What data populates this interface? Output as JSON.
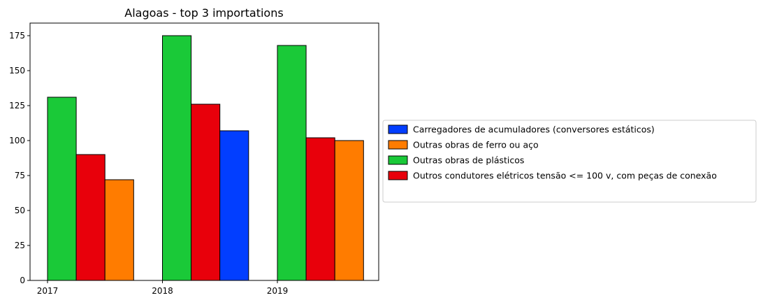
{
  "chart_data": {
    "type": "bar",
    "title": "Alagoas - top 3 importations",
    "xlabel": "",
    "ylabel": "",
    "categories": [
      "2017",
      "2018",
      "2019"
    ],
    "ylim": [
      0,
      184
    ],
    "yticks": [
      0,
      25,
      50,
      75,
      100,
      125,
      150,
      175
    ],
    "grid": false,
    "legend_placement": "right, outside plot",
    "bar_edge_color": "#000000",
    "groups": [
      {
        "category": "2017",
        "bars": [
          {
            "series": "Outras obras de plásticos",
            "value": 131
          },
          {
            "series": "Outros condutores elétricos tensão <= 100 v, com peças de conexão",
            "value": 90
          },
          {
            "series": "Outras obras de ferro ou aço",
            "value": 72
          }
        ]
      },
      {
        "category": "2018",
        "bars": [
          {
            "series": "Outras obras de plásticos",
            "value": 175
          },
          {
            "series": "Outros condutores elétricos tensão <= 100 v, com peças de conexão",
            "value": 126
          },
          {
            "series": "Carregadores de acumuladores (conversores estáticos)",
            "value": 107
          }
        ]
      },
      {
        "category": "2019",
        "bars": [
          {
            "series": "Outras obras de plásticos",
            "value": 168
          },
          {
            "series": "Outros condutores elétricos tensão <= 100 v, com peças de conexão",
            "value": 102
          },
          {
            "series": "Outras obras de ferro ou aço",
            "value": 100
          }
        ]
      }
    ],
    "legend": [
      {
        "name": "Carregadores de acumuladores (conversores estáticos)",
        "color": "#023eff"
      },
      {
        "name": "Outras obras de ferro ou aço",
        "color": "#ff7c00"
      },
      {
        "name": "Outras obras de plásticos",
        "color": "#1ac938"
      },
      {
        "name": "Outros condutores elétricos tensão <= 100 v, com peças de conexão",
        "color": "#e8000b"
      }
    ]
  }
}
